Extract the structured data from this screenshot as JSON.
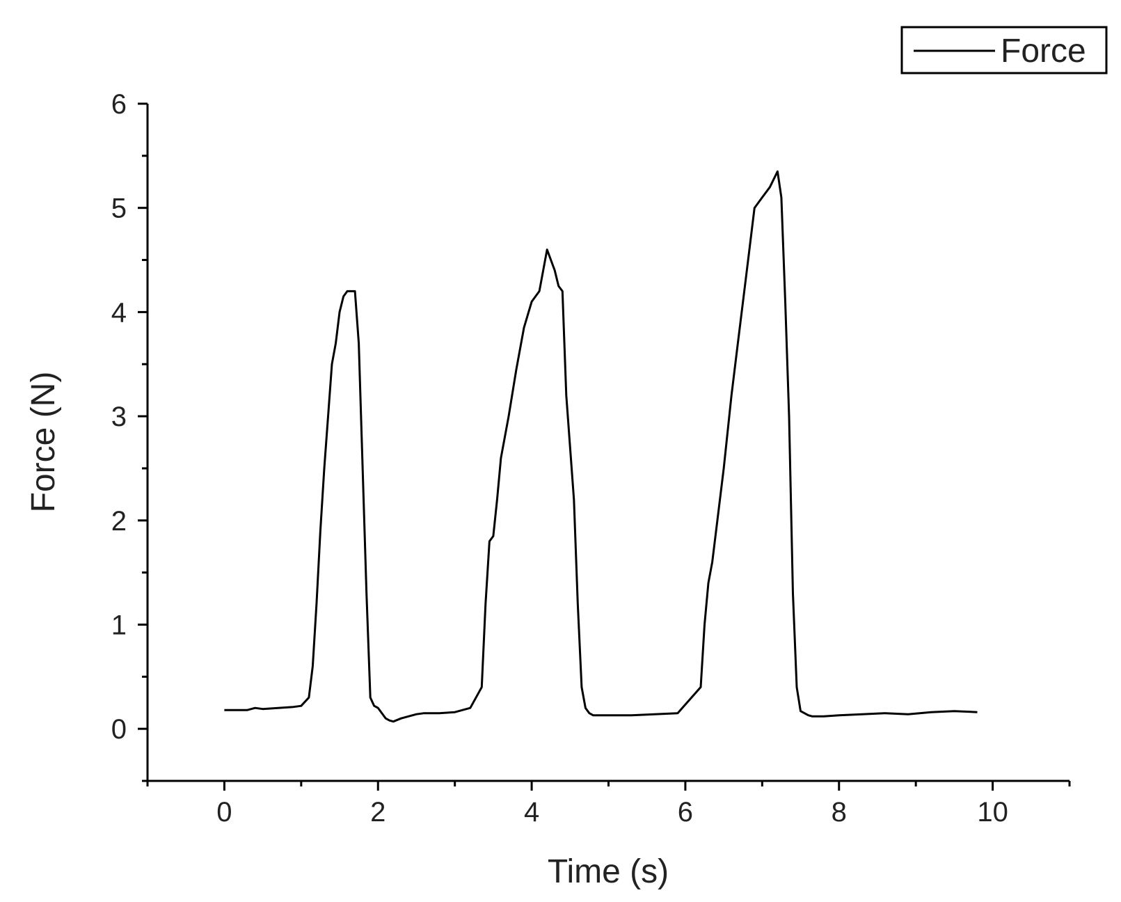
{
  "chart_data": {
    "type": "line",
    "title": "",
    "xlabel": "Time (s)",
    "ylabel": "Force (N)",
    "xlim": [
      -1,
      11
    ],
    "ylim": [
      -0.5,
      6
    ],
    "xticks": [
      0,
      2,
      4,
      6,
      8,
      10
    ],
    "yticks": [
      0,
      1,
      2,
      3,
      4,
      5,
      6
    ],
    "x_minor_step": 1,
    "y_minor_step": 0.5,
    "grid": false,
    "legend_position": "top-right",
    "line_color": "#000000",
    "series": [
      {
        "name": "Force",
        "x": [
          0,
          0.3,
          0.4,
          0.5,
          0.7,
          0.9,
          1.0,
          1.1,
          1.15,
          1.2,
          1.25,
          1.3,
          1.35,
          1.4,
          1.45,
          1.5,
          1.55,
          1.6,
          1.65,
          1.7,
          1.75,
          1.85,
          1.9,
          1.95,
          2.0,
          2.05,
          2.1,
          2.15,
          2.2,
          2.3,
          2.4,
          2.5,
          2.6,
          2.8,
          3.0,
          3.2,
          3.35,
          3.4,
          3.45,
          3.5,
          3.55,
          3.6,
          3.7,
          3.8,
          3.9,
          4.0,
          4.1,
          4.2,
          4.3,
          4.35,
          4.4,
          4.45,
          4.55,
          4.6,
          4.65,
          4.7,
          4.75,
          4.8,
          5.0,
          5.3,
          5.6,
          5.9,
          6.2,
          6.25,
          6.3,
          6.35,
          6.4,
          6.5,
          6.6,
          6.7,
          6.8,
          6.9,
          7.0,
          7.1,
          7.2,
          7.25,
          7.3,
          7.35,
          7.4,
          7.45,
          7.5,
          7.55,
          7.6,
          7.65,
          7.8,
          8.0,
          8.3,
          8.6,
          8.9,
          9.2,
          9.5,
          9.8
        ],
        "y": [
          0.18,
          0.18,
          0.2,
          0.19,
          0.2,
          0.21,
          0.22,
          0.3,
          0.6,
          1.2,
          1.9,
          2.5,
          3.0,
          3.5,
          3.7,
          4.0,
          4.15,
          4.2,
          4.2,
          4.2,
          3.7,
          1.3,
          0.3,
          0.22,
          0.2,
          0.15,
          0.1,
          0.08,
          0.07,
          0.1,
          0.12,
          0.14,
          0.15,
          0.15,
          0.16,
          0.2,
          0.4,
          1.2,
          1.8,
          1.85,
          2.2,
          2.6,
          3.0,
          3.45,
          3.85,
          4.1,
          4.2,
          4.6,
          4.4,
          4.25,
          4.2,
          3.2,
          2.2,
          1.2,
          0.4,
          0.2,
          0.15,
          0.13,
          0.13,
          0.13,
          0.14,
          0.15,
          0.4,
          1.0,
          1.4,
          1.6,
          1.9,
          2.5,
          3.2,
          3.8,
          4.4,
          5.0,
          5.1,
          5.2,
          5.35,
          5.1,
          4.1,
          3.0,
          1.3,
          0.4,
          0.17,
          0.15,
          0.13,
          0.12,
          0.12,
          0.13,
          0.14,
          0.15,
          0.14,
          0.16,
          0.17,
          0.16
        ]
      }
    ]
  }
}
